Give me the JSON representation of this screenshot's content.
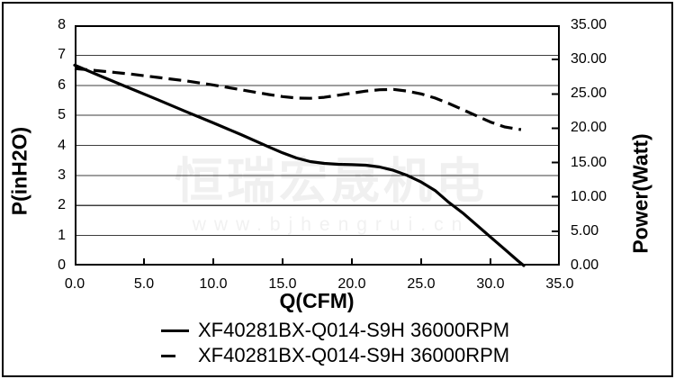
{
  "watermark": {
    "line1": "恒瑞宏晟机电",
    "line2": "www.bjhengrui.cn"
  },
  "colors": {
    "curve": "#000000",
    "gridline": "#3d3d3d",
    "plot_border": "#000000",
    "watermark": "#f0f0f0",
    "background": "#ffffff"
  },
  "chart_data": {
    "type": "line",
    "title": "",
    "xlabel": "Q(CFM)",
    "ylabel_left": "P(inH2O)",
    "ylabel_right": "Power(Watt)",
    "x_range": [
      0,
      35
    ],
    "x_ticks": [
      "0.0",
      "5.0",
      "10.0",
      "15.0",
      "20.0",
      "25.0",
      "30.0",
      "35.0"
    ],
    "y_left_range": [
      0,
      8
    ],
    "y_left_ticks": [
      "8",
      "7",
      "6",
      "5",
      "4",
      "3",
      "2",
      "1",
      "0"
    ],
    "y_right_range": [
      0,
      35
    ],
    "y_right_ticks": [
      "35.00",
      "30.00",
      "25.00",
      "20.00",
      "15.00",
      "10.00",
      "5.00",
      "0.00"
    ],
    "grid": "horizontal",
    "emphasized_gridline": 2,
    "legend_position": "bottom",
    "series": [
      {
        "name": "XF40281BX-Q014-S9H 36000RPM",
        "style": "solid",
        "axis": "left",
        "unit": "inH2O",
        "points": [
          [
            0,
            6.67
          ],
          [
            2,
            6.28
          ],
          [
            4,
            5.9
          ],
          [
            6,
            5.52
          ],
          [
            8,
            5.13
          ],
          [
            10,
            4.75
          ],
          [
            12,
            4.36
          ],
          [
            14,
            3.95
          ],
          [
            15,
            3.75
          ],
          [
            16,
            3.58
          ],
          [
            17,
            3.46
          ],
          [
            18,
            3.4
          ],
          [
            19,
            3.37
          ],
          [
            20,
            3.36
          ],
          [
            21,
            3.34
          ],
          [
            22,
            3.28
          ],
          [
            23,
            3.17
          ],
          [
            24,
            3.0
          ],
          [
            25,
            2.78
          ],
          [
            26,
            2.5
          ],
          [
            27,
            2.1
          ],
          [
            28,
            1.75
          ],
          [
            29,
            1.35
          ],
          [
            30,
            0.95
          ],
          [
            31,
            0.55
          ],
          [
            32,
            0.15
          ],
          [
            32.4,
            0
          ]
        ]
      },
      {
        "name": "XF40281BX-Q014-S9H 36000RPM",
        "style": "dashed",
        "axis": "right",
        "unit": "Watt",
        "points": [
          [
            0,
            28.7
          ],
          [
            2,
            28.3
          ],
          [
            4,
            27.9
          ],
          [
            6,
            27.4
          ],
          [
            8,
            26.9
          ],
          [
            10,
            26.3
          ],
          [
            12,
            25.6
          ],
          [
            14,
            24.9
          ],
          [
            15,
            24.6
          ],
          [
            16,
            24.4
          ],
          [
            17,
            24.35
          ],
          [
            18,
            24.5
          ],
          [
            19,
            24.8
          ],
          [
            20,
            25.1
          ],
          [
            21,
            25.4
          ],
          [
            22,
            25.6
          ],
          [
            23,
            25.65
          ],
          [
            24,
            25.4
          ],
          [
            25,
            25.0
          ],
          [
            26,
            24.4
          ],
          [
            27,
            23.6
          ],
          [
            28,
            22.7
          ],
          [
            29,
            21.8
          ],
          [
            30,
            20.9
          ],
          [
            31,
            20.2
          ],
          [
            32.2,
            19.8
          ]
        ]
      }
    ]
  }
}
